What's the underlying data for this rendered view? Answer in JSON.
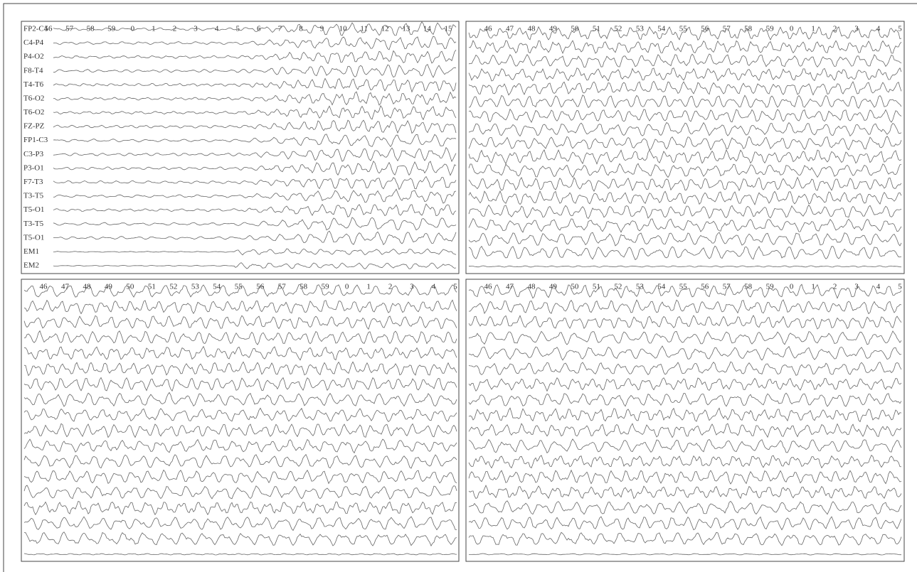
{
  "panels": [
    {
      "time_labels": [
        "56",
        "57",
        "58",
        "59",
        "0",
        "1",
        "2",
        "3",
        "4",
        "5",
        "6",
        "7",
        "8",
        "9",
        "10",
        "11",
        "12",
        "13",
        "14",
        "15"
      ],
      "channels": [
        "FP2-C4",
        "C4-P4",
        "P4-O2",
        "F8-T4",
        "T4-T6",
        "T6-O2",
        "T6-O2",
        "FZ-PZ",
        "FP1-C3",
        "C3-P3",
        "P3-O1",
        "F7-T3",
        "T3-T5",
        "T5-O1",
        "T3-T5",
        "T5-O1",
        "EM1",
        "EM2"
      ]
    },
    {
      "time_labels": [
        "46",
        "47",
        "48",
        "49",
        "50",
        "51",
        "52",
        "53",
        "54",
        "55",
        "56",
        "57",
        "58",
        "59",
        "0",
        "1",
        "2",
        "3",
        "4",
        "5"
      ]
    },
    {
      "time_labels": [
        "46",
        "47",
        "48",
        "49",
        "50",
        "51",
        "52",
        "53",
        "54",
        "55",
        "56",
        "57",
        "58",
        "59",
        "0",
        "1",
        "2",
        "3",
        "4",
        "5"
      ]
    },
    {
      "time_labels": [
        "46",
        "47",
        "48",
        "49",
        "50",
        "51",
        "52",
        "53",
        "54",
        "55",
        "56",
        "57",
        "58",
        "59",
        "0",
        "1",
        "2",
        "3",
        "4",
        "5"
      ]
    }
  ]
}
